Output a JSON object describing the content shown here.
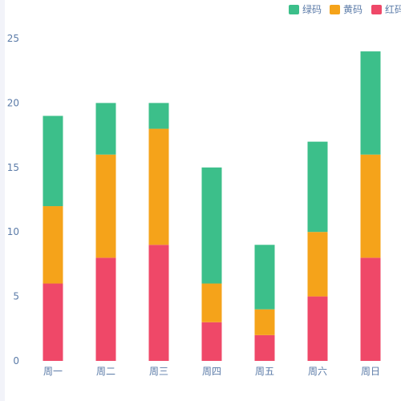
{
  "chart_data": {
    "type": "bar",
    "stacked": true,
    "title": "",
    "xlabel": "",
    "ylabel": "",
    "categories": [
      "周一",
      "周二",
      "周三",
      "周四",
      "周五",
      "周六",
      "周日"
    ],
    "ylim": [
      0,
      25
    ],
    "yticks": [
      0,
      5,
      10,
      15,
      20,
      25
    ],
    "grid": false,
    "legend": "top-right",
    "series": [
      {
        "name": "红码",
        "color": "#ef4868",
        "values": [
          6,
          8,
          9,
          3,
          2,
          5,
          8
        ]
      },
      {
        "name": "黄码",
        "color": "#f5a31a",
        "values": [
          6,
          8,
          9,
          3,
          2,
          5,
          8
        ]
      },
      {
        "name": "绿码",
        "color": "#3cbf8a",
        "values": [
          7,
          4,
          2,
          9,
          5,
          7,
          8
        ]
      }
    ],
    "legend_order": [
      "绿码",
      "黄码",
      "红码"
    ]
  }
}
